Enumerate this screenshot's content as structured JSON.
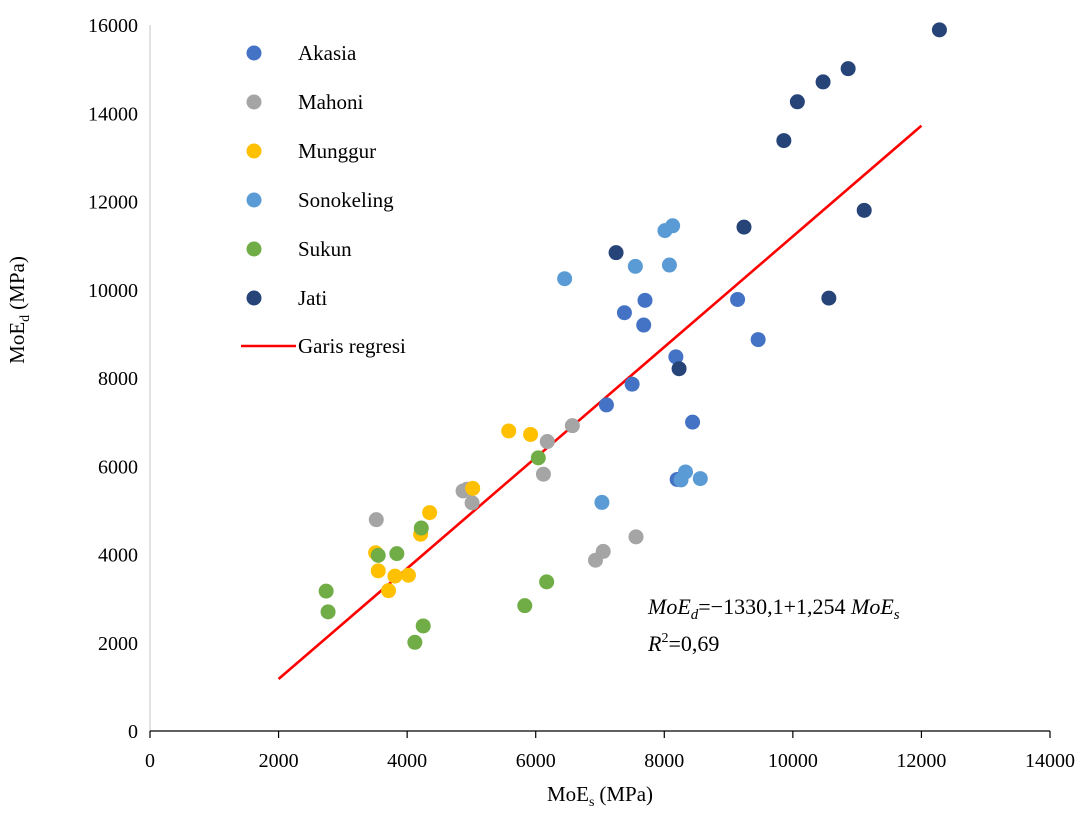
{
  "chart_data": {
    "type": "scatter",
    "xlabel": {
      "main": "MoE",
      "sub": "s",
      "unit": "(MPa)"
    },
    "ylabel": {
      "main": "MoE",
      "sub": "d",
      "unit": "(MPa)"
    },
    "xlim": [
      0,
      14000
    ],
    "ylim": [
      0,
      16000
    ],
    "xticks": [
      0,
      2000,
      4000,
      6000,
      8000,
      10000,
      12000,
      14000
    ],
    "yticks": [
      0,
      2000,
      4000,
      6000,
      8000,
      10000,
      12000,
      14000,
      16000
    ],
    "grid": false,
    "legend_position": "top-left",
    "series": [
      {
        "name": "Akasia",
        "color": "#4472C4",
        "points": [
          [
            7380,
            9480
          ],
          [
            7700,
            9760
          ],
          [
            7680,
            9200
          ],
          [
            9140,
            9780
          ],
          [
            9460,
            8870
          ],
          [
            8180,
            8480
          ],
          [
            7500,
            7860
          ],
          [
            7100,
            7390
          ],
          [
            8440,
            7000
          ],
          [
            8200,
            5700
          ]
        ]
      },
      {
        "name": "Mahoni",
        "color": "#A5A5A5",
        "points": [
          [
            3520,
            4790
          ],
          [
            4870,
            5440
          ],
          [
            4930,
            5480
          ],
          [
            5010,
            5170
          ],
          [
            6120,
            5820
          ],
          [
            6180,
            6560
          ],
          [
            6570,
            6920
          ],
          [
            6930,
            3870
          ],
          [
            7050,
            4070
          ],
          [
            7560,
            4400
          ]
        ]
      },
      {
        "name": "Munggur",
        "color": "#FFC000",
        "points": [
          [
            3510,
            4040
          ],
          [
            3550,
            3630
          ],
          [
            3710,
            3180
          ],
          [
            3810,
            3510
          ],
          [
            4020,
            3530
          ],
          [
            4210,
            4460
          ],
          [
            4350,
            4950
          ],
          [
            5020,
            5500
          ],
          [
            5580,
            6800
          ],
          [
            5920,
            6720
          ]
        ]
      },
      {
        "name": "Sonokeling",
        "color": "#5B9BD5",
        "points": [
          [
            6450,
            10250
          ],
          [
            7550,
            10530
          ],
          [
            8010,
            11340
          ],
          [
            8130,
            11450
          ],
          [
            8080,
            10560
          ],
          [
            7030,
            5180
          ],
          [
            8260,
            5690
          ],
          [
            8330,
            5870
          ],
          [
            8560,
            5720
          ]
        ]
      },
      {
        "name": "Sukun",
        "color": "#70AD47",
        "points": [
          [
            2740,
            3170
          ],
          [
            2770,
            2700
          ],
          [
            3550,
            3980
          ],
          [
            3840,
            4020
          ],
          [
            4220,
            4600
          ],
          [
            4250,
            2380
          ],
          [
            4120,
            2010
          ],
          [
            5830,
            2840
          ],
          [
            6040,
            6190
          ],
          [
            6170,
            3380
          ]
        ]
      },
      {
        "name": "Jati",
        "color": "#264478",
        "points": [
          [
            7250,
            10840
          ],
          [
            9240,
            11420
          ],
          [
            9860,
            13380
          ],
          [
            10070,
            14260
          ],
          [
            10470,
            14710
          ],
          [
            10860,
            15010
          ],
          [
            11110,
            11800
          ],
          [
            10560,
            9810
          ],
          [
            8230,
            8210
          ],
          [
            12280,
            15890
          ]
        ]
      }
    ],
    "regression": {
      "name": "Garis regresi",
      "color": "#FF0000",
      "x": [
        2000,
        12000
      ],
      "intercept": -1330.1,
      "slope": 1.254
    },
    "annotations": {
      "equation": "MoEd=−1330,1+1,254 MoEs",
      "r2": "R2=0,69"
    }
  }
}
